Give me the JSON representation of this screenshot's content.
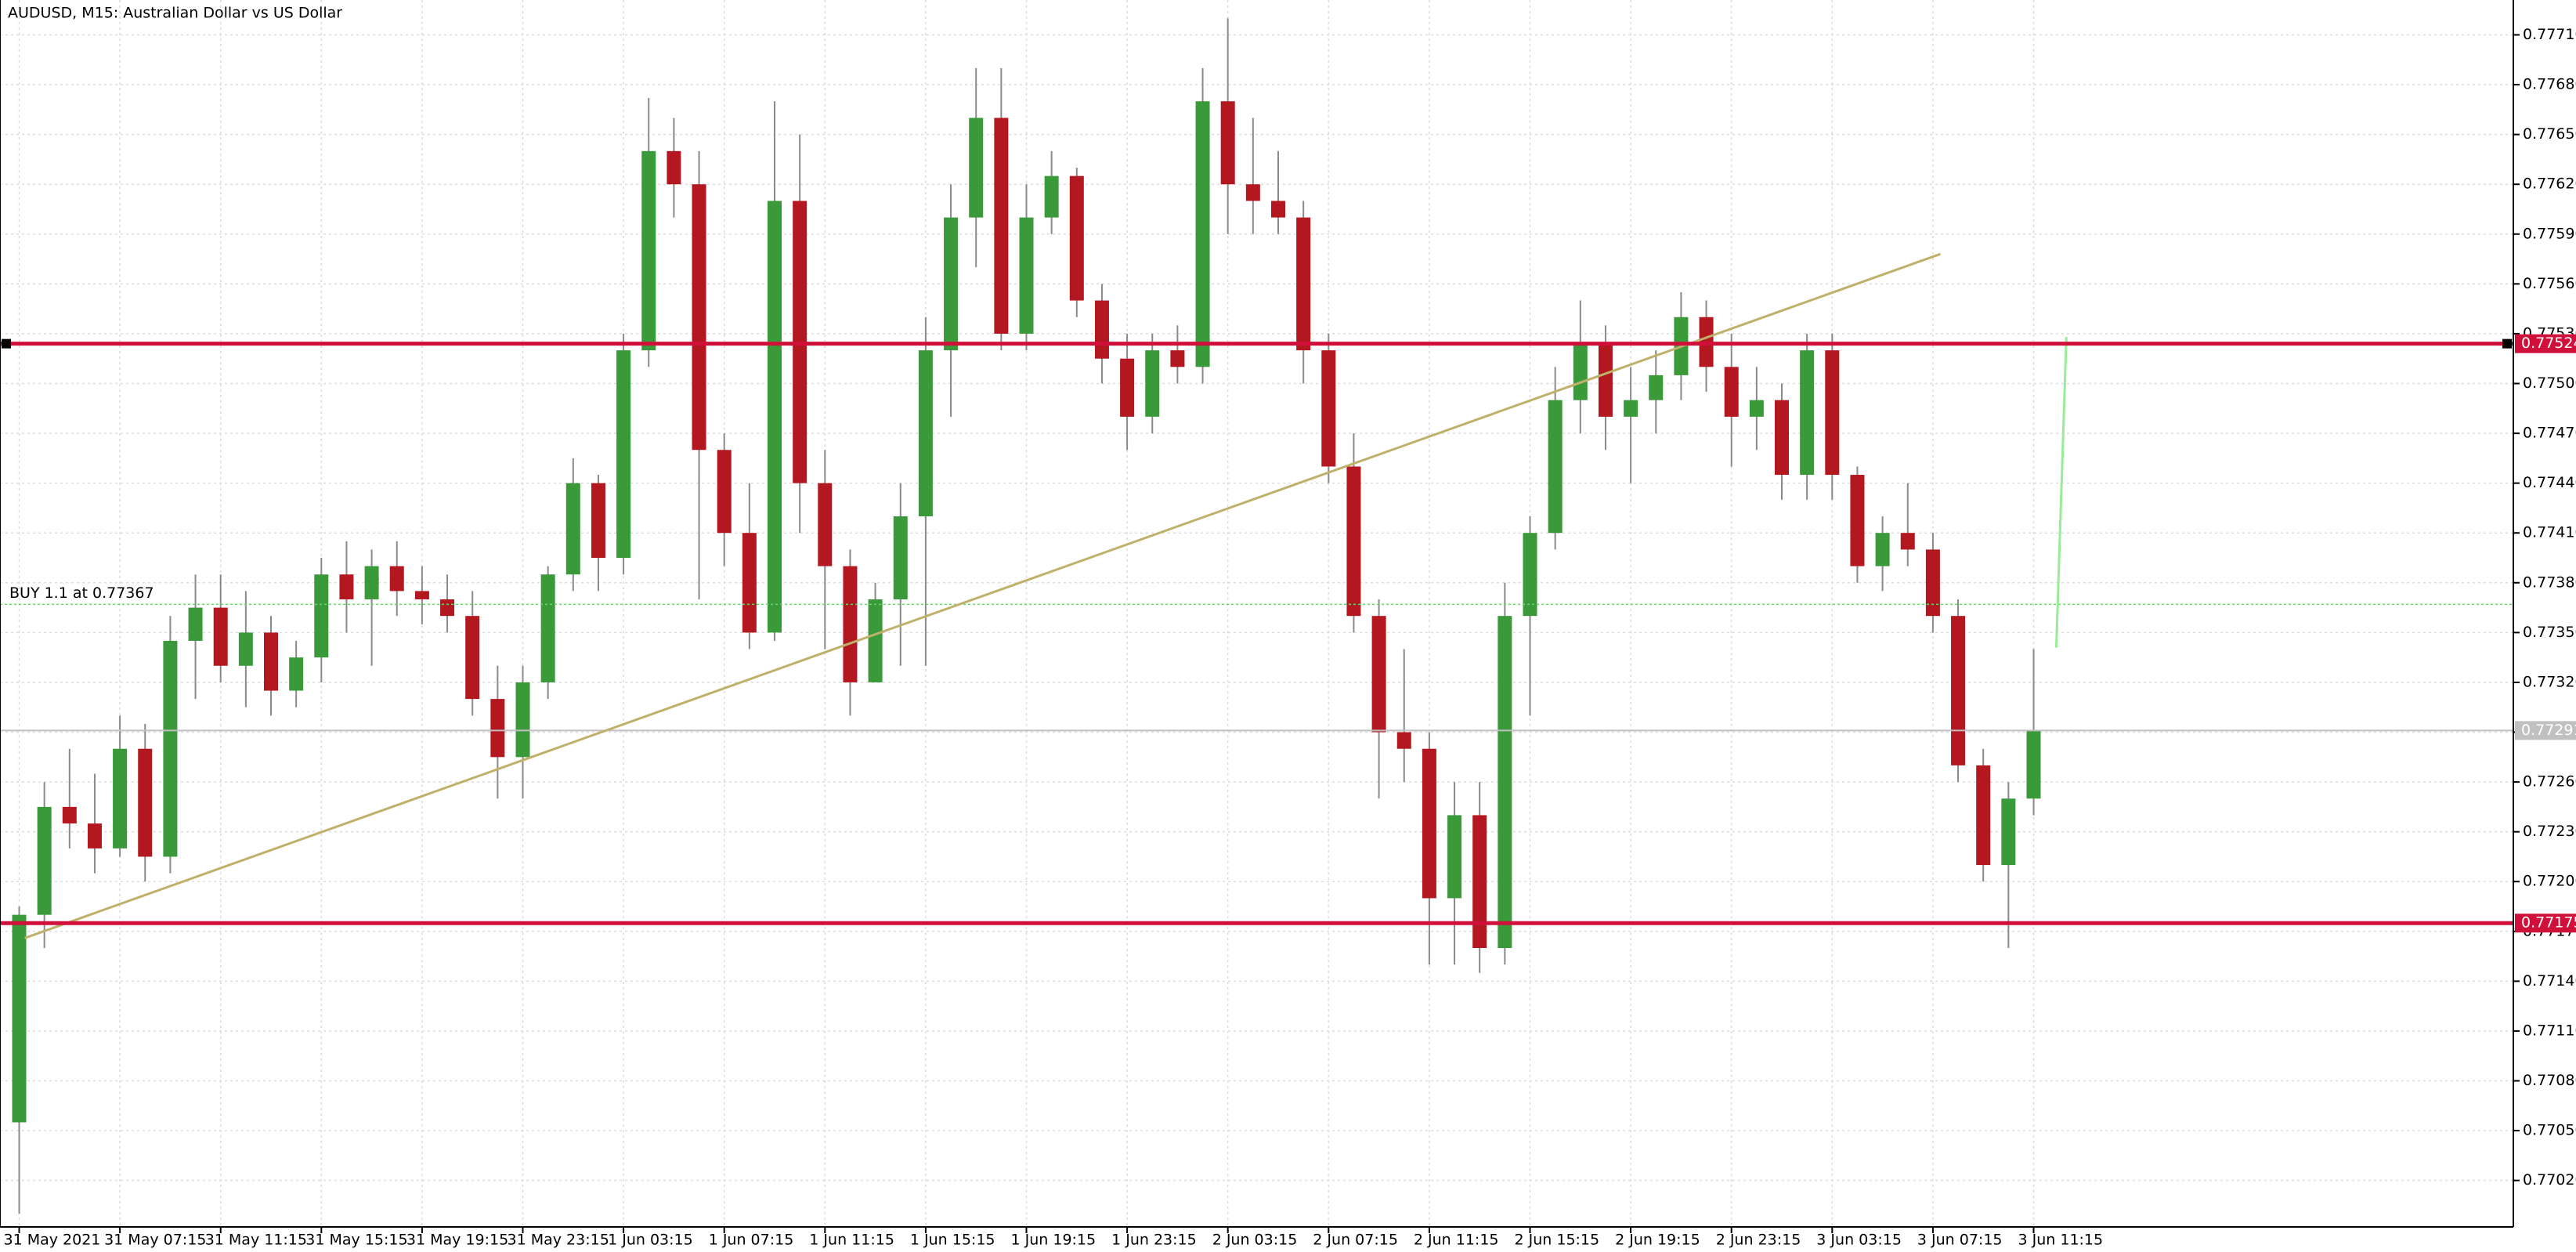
{
  "chart_data": {
    "type": "candlestick",
    "title": "AUDUSD, M15:  Australian Dollar vs US Dollar",
    "categories": [
      "31 May 2021",
      null,
      null,
      null,
      "31 May 07:15",
      null,
      null,
      null,
      "31 May 11:15",
      null,
      null,
      null,
      "31 May 15:15",
      null,
      null,
      null,
      "31 May 19:15",
      null,
      null,
      null,
      "31 May 23:15",
      null,
      null,
      null,
      "1 Jun 03:15",
      null,
      null,
      null,
      "1 Jun 07:15",
      null,
      null,
      null,
      "1 Jun 11:15",
      null,
      null,
      null,
      "1 Jun 15:15",
      null,
      null,
      null,
      "1 Jun 19:15",
      null,
      null,
      null,
      "1 Jun 23:15",
      null,
      null,
      null,
      "2 Jun 03:15",
      null,
      null,
      null,
      "2 Jun 07:15",
      null,
      null,
      null,
      "2 Jun 11:15",
      null,
      null,
      null,
      "2 Jun 15:15",
      null,
      null,
      null,
      "2 Jun 19:15",
      null,
      null,
      null,
      "2 Jun 23:15",
      null,
      null,
      null,
      "3 Jun 03:15",
      null,
      null,
      null,
      "3 Jun 07:15",
      null,
      null,
      null,
      "3 Jun 11:15"
    ],
    "open": [
      0.77055,
      0.7718,
      0.77245,
      0.77235,
      0.7722,
      0.7728,
      0.77215,
      0.77345,
      0.77365,
      0.7733,
      0.7735,
      0.77315,
      0.77335,
      0.77385,
      0.7737,
      0.7739,
      0.77375,
      0.7737,
      0.7736,
      0.7731,
      0.77275,
      0.7732,
      0.77385,
      0.7744,
      0.77395,
      0.7752,
      0.7764,
      0.7762,
      0.7746,
      0.7741,
      0.7735,
      0.7761,
      0.7744,
      0.7739,
      0.7732,
      0.7737,
      0.7742,
      0.7752,
      0.776,
      0.7766,
      0.7753,
      0.776,
      0.77625,
      0.7755,
      0.77515,
      0.7748,
      0.7752,
      0.7751,
      0.7767,
      0.7762,
      0.7761,
      0.776,
      0.7752,
      0.7745,
      0.7736,
      0.7729,
      0.7728,
      0.7719,
      0.7724,
      0.7716,
      0.7736,
      0.7741,
      0.7749,
      0.77525,
      0.7748,
      0.7749,
      0.77505,
      0.7754,
      0.7751,
      0.7748,
      0.7749,
      0.77445,
      0.7752,
      0.77445,
      0.7739,
      0.7741,
      0.774,
      0.7736,
      0.7727,
      0.7721,
      0.7725
    ],
    "high": [
      0.77185,
      0.7726,
      0.7728,
      0.77265,
      0.773,
      0.77295,
      0.7736,
      0.77385,
      0.77385,
      0.77375,
      0.7736,
      0.77345,
      0.77395,
      0.77405,
      0.774,
      0.77405,
      0.7739,
      0.77385,
      0.77375,
      0.7733,
      0.7733,
      0.7739,
      0.77455,
      0.77445,
      0.7753,
      0.77672,
      0.7766,
      0.7764,
      0.7747,
      0.7744,
      0.7767,
      0.7765,
      0.7746,
      0.774,
      0.7738,
      0.7744,
      0.7754,
      0.7762,
      0.7769,
      0.7769,
      0.7762,
      0.7764,
      0.7763,
      0.7756,
      0.7753,
      0.7753,
      0.77535,
      0.7769,
      0.7772,
      0.7766,
      0.7764,
      0.7761,
      0.7753,
      0.7747,
      0.7737,
      0.7734,
      0.7729,
      0.7726,
      0.7726,
      0.7738,
      0.7742,
      0.7751,
      0.7755,
      0.77535,
      0.7751,
      0.7752,
      0.77555,
      0.7755,
      0.7753,
      0.7751,
      0.775,
      0.7753,
      0.7753,
      0.7745,
      0.7742,
      0.7744,
      0.7741,
      0.7737,
      0.7728,
      0.7726,
      0.7734
    ],
    "low": [
      0.77,
      0.7716,
      0.7722,
      0.77205,
      0.77215,
      0.772,
      0.77205,
      0.7731,
      0.7732,
      0.77305,
      0.773,
      0.77305,
      0.7732,
      0.7735,
      0.7733,
      0.7736,
      0.77355,
      0.7735,
      0.773,
      0.7725,
      0.7725,
      0.7731,
      0.77375,
      0.77375,
      0.77385,
      0.7751,
      0.776,
      0.7737,
      0.7739,
      0.7734,
      0.77345,
      0.7741,
      0.7734,
      0.773,
      0.7732,
      0.7733,
      0.7733,
      0.7748,
      0.7757,
      0.7752,
      0.7752,
      0.7759,
      0.7754,
      0.775,
      0.7746,
      0.7747,
      0.775,
      0.775,
      0.7759,
      0.7759,
      0.7759,
      0.775,
      0.7744,
      0.7735,
      0.7725,
      0.7726,
      0.7715,
      0.7715,
      0.77145,
      0.7715,
      0.773,
      0.774,
      0.7747,
      0.7746,
      0.7744,
      0.7747,
      0.7749,
      0.77495,
      0.7745,
      0.7746,
      0.7743,
      0.7743,
      0.7743,
      0.7738,
      0.77375,
      0.7739,
      0.7735,
      0.7726,
      0.772,
      0.7716,
      0.7724
    ],
    "close": [
      0.7718,
      0.77245,
      0.77235,
      0.7722,
      0.7728,
      0.77215,
      0.77345,
      0.77365,
      0.7733,
      0.7735,
      0.77315,
      0.77335,
      0.77385,
      0.7737,
      0.7739,
      0.77375,
      0.7737,
      0.7736,
      0.7731,
      0.77275,
      0.7732,
      0.77385,
      0.7744,
      0.77395,
      0.7752,
      0.7764,
      0.7762,
      0.7746,
      0.7741,
      0.7735,
      0.7761,
      0.7744,
      0.7739,
      0.7732,
      0.7737,
      0.7742,
      0.7752,
      0.776,
      0.7766,
      0.7753,
      0.776,
      0.77625,
      0.7755,
      0.77515,
      0.7748,
      0.7752,
      0.7751,
      0.7767,
      0.7762,
      0.7761,
      0.776,
      0.7752,
      0.7745,
      0.7736,
      0.7729,
      0.7728,
      0.7719,
      0.7724,
      0.7716,
      0.7736,
      0.7741,
      0.7749,
      0.77525,
      0.7748,
      0.7749,
      0.77505,
      0.7754,
      0.7751,
      0.7748,
      0.7749,
      0.77445,
      0.7752,
      0.77445,
      0.7739,
      0.7741,
      0.774,
      0.7736,
      0.7727,
      0.7721,
      0.7725,
      0.77291
    ],
    "up_color": "#3a9a3a",
    "down_color": "#b3171f",
    "wick_color": "#8a8a8a",
    "ylim": [
      0.76992,
      0.77731
    ],
    "yticks": [
      {
        "value": 0.7702,
        "label": "0.77020"
      },
      {
        "value": 0.7705,
        "label": "0.77050"
      },
      {
        "value": 0.7708,
        "label": "0.77080"
      },
      {
        "value": 0.7711,
        "label": "0.77110"
      },
      {
        "value": 0.7714,
        "label": "0.77140"
      },
      {
        "value": 0.7717,
        "label": "0.77170"
      },
      {
        "value": 0.772,
        "label": "0.77200"
      },
      {
        "value": 0.7723,
        "label": "0.77230"
      },
      {
        "value": 0.7726,
        "label": "0.77260"
      },
      {
        "value": 0.7729,
        "label": "0.77290"
      },
      {
        "value": 0.7732,
        "label": "0.77320"
      },
      {
        "value": 0.7735,
        "label": "0.77350"
      },
      {
        "value": 0.7738,
        "label": "0.77380"
      },
      {
        "value": 0.7741,
        "label": "0.77410"
      },
      {
        "value": 0.7744,
        "label": "0.77440"
      },
      {
        "value": 0.7747,
        "label": "0.77470"
      },
      {
        "value": 0.775,
        "label": "0.77500"
      },
      {
        "value": 0.7753,
        "label": "0.77530"
      },
      {
        "value": 0.7756,
        "label": "0.77560"
      },
      {
        "value": 0.7759,
        "label": "0.77590"
      },
      {
        "value": 0.7762,
        "label": "0.77620"
      },
      {
        "value": 0.7765,
        "label": "0.77650"
      },
      {
        "value": 0.7768,
        "label": "0.77680"
      },
      {
        "value": 0.7771,
        "label": "0.77710"
      }
    ],
    "grid": true,
    "levels": [
      {
        "value": 0.77524,
        "color": "#d0103a"
      },
      {
        "value": 0.77175,
        "color": "#d0103a"
      }
    ],
    "current_price": {
      "value": 0.77291,
      "color": "#c0c0c0"
    },
    "order": {
      "label": "BUY 1.1 at 0.77367",
      "price": 0.77367,
      "color": "#6fd06f"
    },
    "trendline": {
      "x": [
        0.22,
        76.3
      ],
      "y": [
        0.77166,
        0.77578
      ],
      "color": "#bfb06a"
    },
    "projection": {
      "x": [
        80.9,
        81.3
      ],
      "y": [
        0.77341,
        0.77528
      ],
      "color": "#98ec98"
    }
  }
}
